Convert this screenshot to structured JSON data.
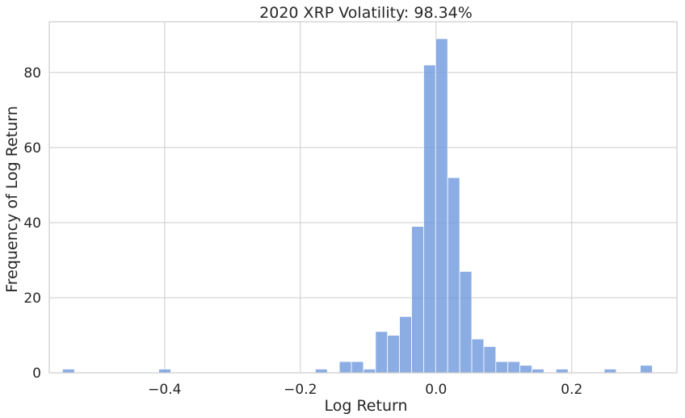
{
  "chart_data": {
    "type": "bar",
    "title": "2020 XRP Volatility: 98.34%",
    "xlabel": "Log Return",
    "ylabel": "Frequency of Log Return",
    "xlim": [
      -0.57,
      0.355
    ],
    "ylim": [
      0,
      93.5
    ],
    "xticks": [
      -0.4,
      -0.2,
      0.0,
      0.2
    ],
    "xtick_labels": [
      "−0.4",
      "−0.2",
      "0.0",
      "0.2"
    ],
    "yticks": [
      0,
      20,
      40,
      60,
      80
    ],
    "ytick_labels": [
      "0",
      "20",
      "40",
      "60",
      "80"
    ],
    "grid": true,
    "bar_color": "#6f98dc",
    "bin_start": -0.5505,
    "bin_width": 0.01774,
    "values": [
      1,
      0,
      0,
      0,
      0,
      0,
      0,
      0,
      1,
      0,
      0,
      0,
      0,
      0,
      0,
      0,
      0,
      0,
      0,
      0,
      0,
      1,
      0,
      3,
      3,
      1,
      11,
      10,
      15,
      39,
      82,
      89,
      52,
      27,
      9,
      7,
      3,
      3,
      2,
      1,
      0,
      1,
      0,
      0,
      0,
      1,
      0,
      0,
      2
    ]
  }
}
